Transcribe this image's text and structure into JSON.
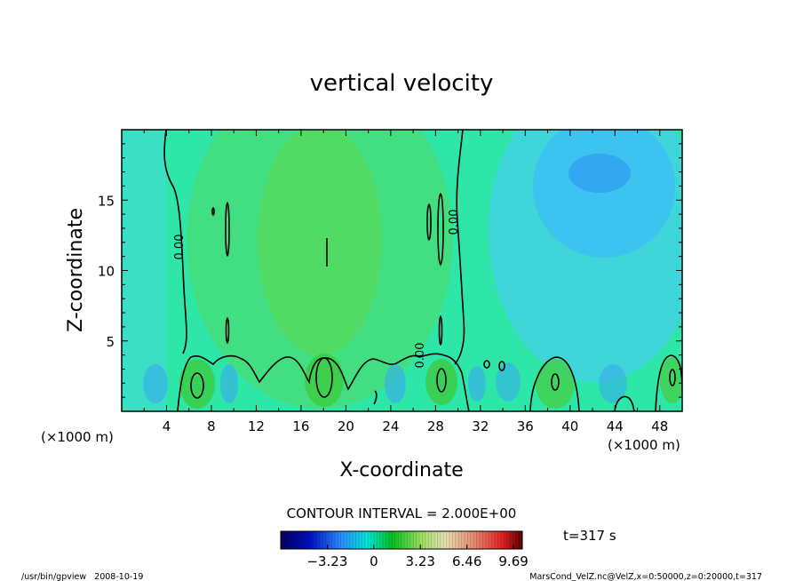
{
  "chart_data": {
    "type": "heatmap",
    "title": "vertical velocity",
    "xlabel": "X-coordinate",
    "ylabel": "Z-coordinate",
    "x_unit_left": "(×1000 m)",
    "x_unit_right": "(×1000 m)",
    "xlim": [
      0,
      50
    ],
    "ylim": [
      0,
      20
    ],
    "x_ticks": [
      4,
      8,
      12,
      16,
      20,
      24,
      28,
      32,
      36,
      40,
      44,
      48
    ],
    "y_ticks": [
      5,
      10,
      15
    ],
    "contour_interval_label": "CONTOUR INTERVAL = 2.000E+00",
    "contour_labels": [
      "0.00",
      "0.00",
      "0.00"
    ],
    "colorbar": {
      "ticks": [
        "−3.23",
        "0",
        "3.23",
        "6.46",
        "9.69"
      ],
      "tick_values": [
        -3.23,
        0,
        3.23,
        6.46,
        9.69
      ],
      "range": [
        -6.46,
        10.3
      ]
    },
    "time_label": "t=317 s",
    "grid": false
  },
  "footer": {
    "left": "/usr/bin/gpview   2008-10-19",
    "right": "MarsCond_VelZ.nc@VelZ,x=0:50000,z=0:20000,t=317"
  }
}
